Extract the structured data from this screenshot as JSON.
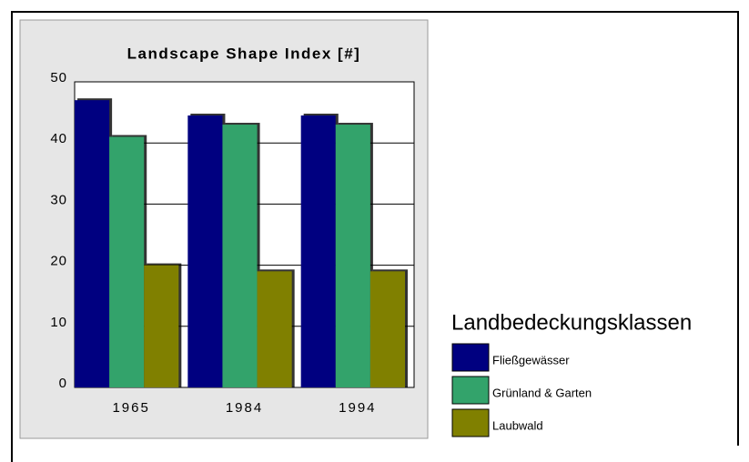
{
  "chart_data": {
    "type": "bar",
    "title": "Landscape Shape Index [#]",
    "categories": [
      "1965",
      "1984",
      "1994"
    ],
    "series": [
      {
        "name": "Fließgewässer",
        "color": "#000080",
        "values": [
          47,
          44.5,
          44.5
        ]
      },
      {
        "name": "Grünland & Garten",
        "color": "#33a36b",
        "values": [
          41,
          43,
          43
        ]
      },
      {
        "name": "Laubwald",
        "color": "#808000",
        "values": [
          20,
          19,
          19
        ]
      }
    ],
    "legend_title": "Landbedeckungsklassen",
    "ylim": [
      0,
      50
    ],
    "yticks": [
      0,
      10,
      20,
      30,
      40,
      50
    ],
    "grid": true,
    "legend": "right"
  }
}
